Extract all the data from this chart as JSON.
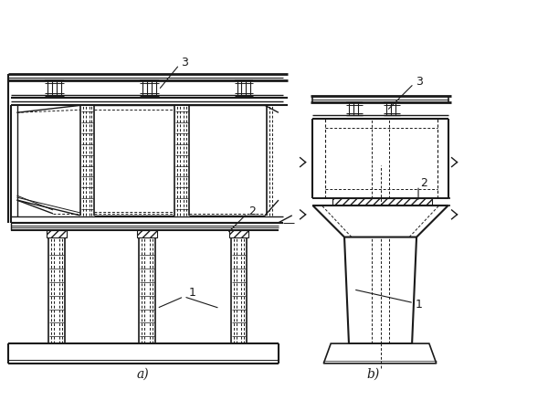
{
  "bg_color": "#ffffff",
  "line_color": "#1a1a1a",
  "title_a": "a)",
  "title_b": "b)",
  "label_1": "1",
  "label_2": "2",
  "label_3": "3",
  "fig_width": 6.0,
  "fig_height": 4.5,
  "dpi": 100
}
